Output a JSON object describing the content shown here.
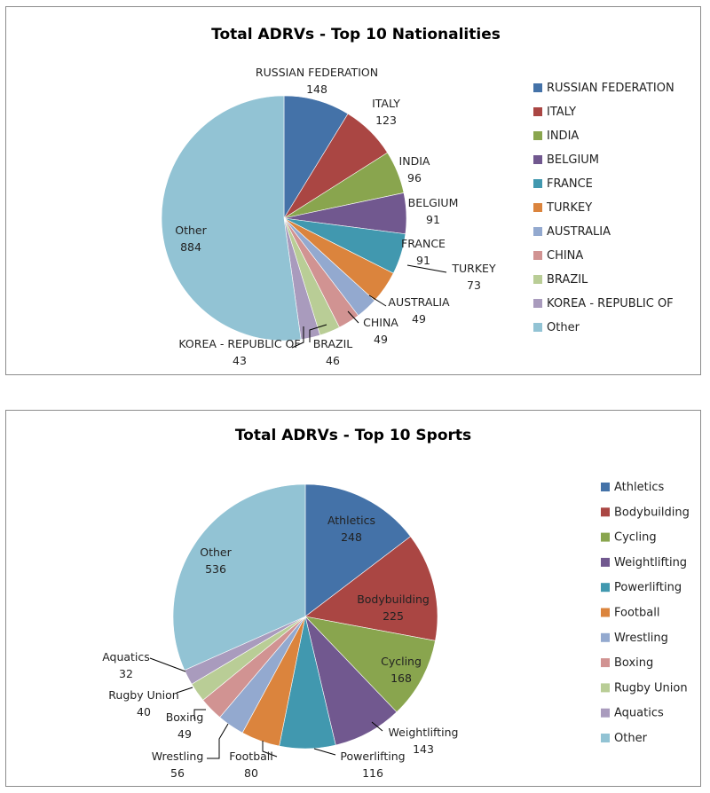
{
  "chart_data": [
    {
      "type": "pie",
      "title": "Total ADRVs - Top 10 Nationalities",
      "start_angle_deg": 0,
      "direction": "clockwise",
      "legend_position": "right",
      "slices": [
        {
          "label": "RUSSIAN FEDERATION",
          "value": 148,
          "color": "#4472A8"
        },
        {
          "label": "ITALY",
          "value": 123,
          "color": "#AA4643"
        },
        {
          "label": "INDIA",
          "value": 96,
          "color": "#89A54E"
        },
        {
          "label": "BELGIUM",
          "value": 91,
          "color": "#71588F"
        },
        {
          "label": "FRANCE",
          "value": 91,
          "color": "#4198AF"
        },
        {
          "label": "TURKEY",
          "value": 73,
          "color": "#DB843D"
        },
        {
          "label": "AUSTRALIA",
          "value": 49,
          "color": "#93A9CF"
        },
        {
          "label": "CHINA",
          "value": 49,
          "color": "#D19392"
        },
        {
          "label": "BRAZIL",
          "value": 46,
          "color": "#B9CD96"
        },
        {
          "label": "KOREA - REPUBLIC OF",
          "value": 43,
          "color": "#A99BBD"
        },
        {
          "label": "Other",
          "value": 884,
          "color": "#92C3D4"
        }
      ]
    },
    {
      "type": "pie",
      "title": "Total ADRVs - Top 10 Sports",
      "start_angle_deg": 0,
      "direction": "clockwise",
      "legend_position": "right",
      "slices": [
        {
          "label": "Athletics",
          "value": 248,
          "color": "#4472A8"
        },
        {
          "label": "Bodybuilding",
          "value": 225,
          "color": "#AA4643"
        },
        {
          "label": "Cycling",
          "value": 168,
          "color": "#89A54E"
        },
        {
          "label": "Weightlifting",
          "value": 143,
          "color": "#71588F"
        },
        {
          "label": "Powerlifting",
          "value": 116,
          "color": "#4198AF"
        },
        {
          "label": "Football",
          "value": 80,
          "color": "#DB843D"
        },
        {
          "label": "Wrestling",
          "value": 56,
          "color": "#93A9CF"
        },
        {
          "label": "Boxing",
          "value": 49,
          "color": "#D19392"
        },
        {
          "label": "Rugby Union",
          "value": 40,
          "color": "#B9CD96"
        },
        {
          "label": "Aquatics",
          "value": 32,
          "color": "#A99BBD"
        },
        {
          "label": "Other",
          "value": 536,
          "color": "#92C3D4"
        }
      ]
    }
  ]
}
